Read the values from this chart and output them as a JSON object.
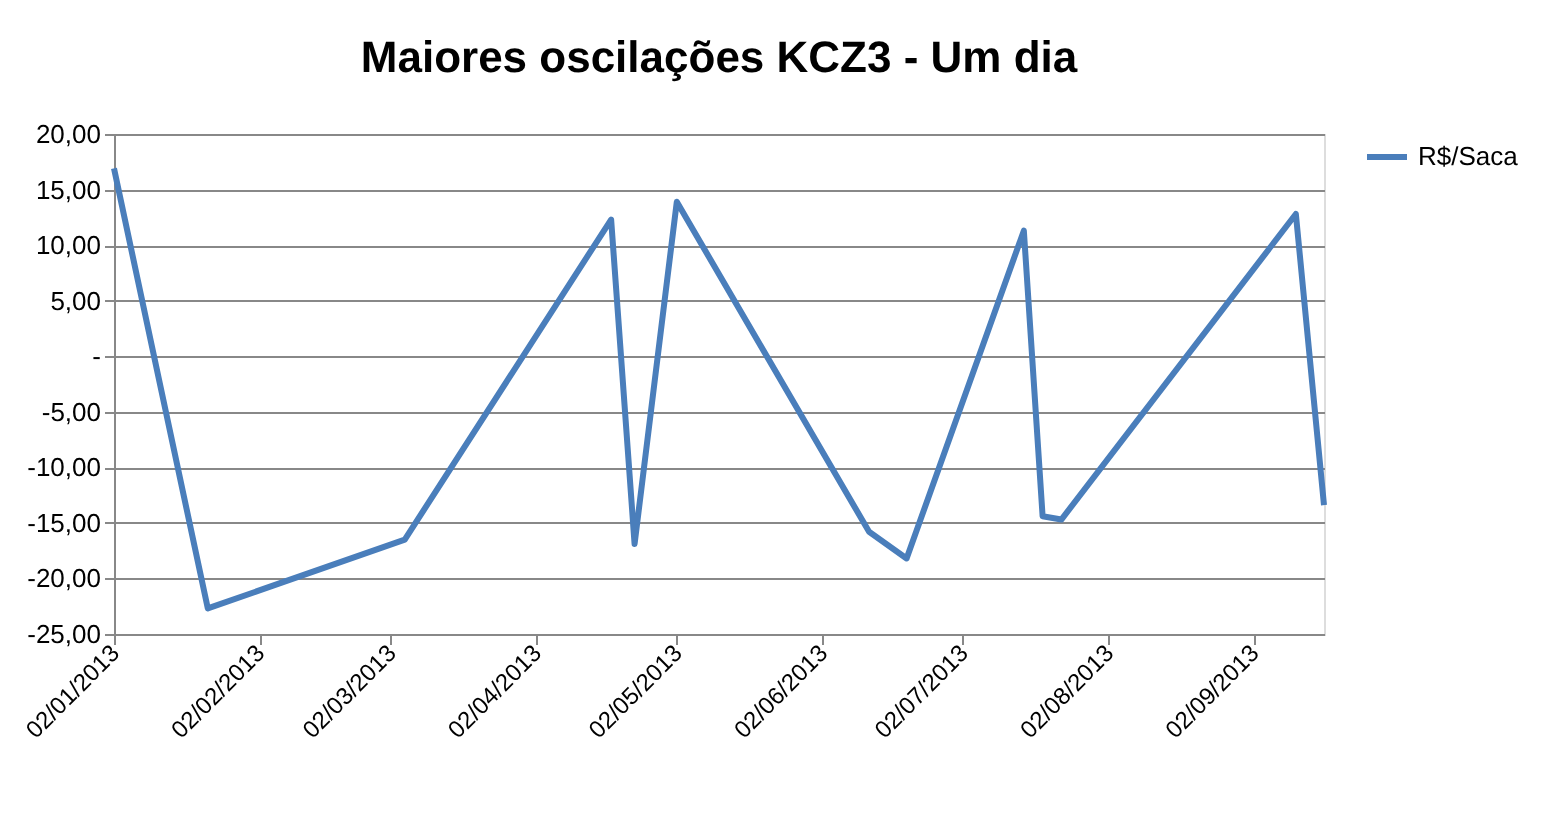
{
  "chart_data": {
    "type": "line",
    "title": "Maiores oscilações KCZ3 - Um dia",
    "x": [
      "2013-01-02",
      "2013-01-22",
      "2013-03-05",
      "2013-04-18",
      "2013-04-23",
      "2013-05-02",
      "2013-06-12",
      "2013-06-20",
      "2013-07-15",
      "2013-07-19",
      "2013-07-23",
      "2013-09-11",
      "2013-09-17"
    ],
    "series": [
      {
        "name": "R$/Saca",
        "color": "#4a7ebb",
        "values": [
          16.9,
          -22.7,
          -16.5,
          12.3,
          -16.9,
          13.9,
          -15.8,
          -18.2,
          11.3,
          -14.4,
          -14.7,
          12.8,
          -13.4
        ]
      }
    ],
    "xlim": [
      "2013-01-02",
      "2013-09-17"
    ],
    "xticks": [
      {
        "value": "2013-01-02",
        "label": "02/01/2013"
      },
      {
        "value": "2013-02-02",
        "label": "02/02/2013"
      },
      {
        "value": "2013-03-02",
        "label": "02/03/2013"
      },
      {
        "value": "2013-04-02",
        "label": "02/04/2013"
      },
      {
        "value": "2013-05-02",
        "label": "02/05/2013"
      },
      {
        "value": "2013-06-02",
        "label": "02/06/2013"
      },
      {
        "value": "2013-07-02",
        "label": "02/07/2013"
      },
      {
        "value": "2013-08-02",
        "label": "02/08/2013"
      },
      {
        "value": "2013-09-02",
        "label": "02/09/2013"
      }
    ],
    "ylim": [
      -25,
      20
    ],
    "yticks": [
      {
        "value": 20,
        "label": "20,00"
      },
      {
        "value": 15,
        "label": "15,00"
      },
      {
        "value": 10,
        "label": "10,00"
      },
      {
        "value": 5,
        "label": "5,00"
      },
      {
        "value": 0,
        "label": "-"
      },
      {
        "value": -5,
        "label": "-5,00"
      },
      {
        "value": -10,
        "label": "-10,00"
      },
      {
        "value": -15,
        "label": "-15,00"
      },
      {
        "value": -20,
        "label": "-20,00"
      },
      {
        "value": -25,
        "label": "-25,00"
      }
    ],
    "grid": "y",
    "legend": "right",
    "marker": "none",
    "line_style": "solid"
  }
}
